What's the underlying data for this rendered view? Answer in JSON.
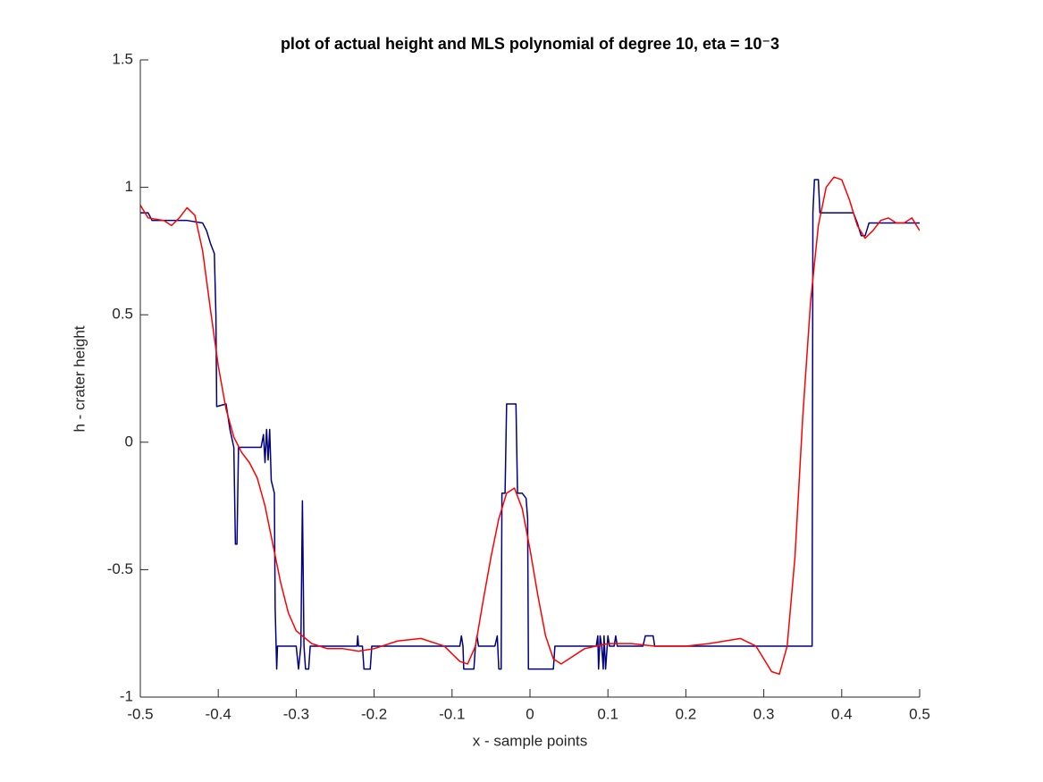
{
  "chart_data": {
    "type": "line",
    "title": "plot of actual height and MLS polynomial of degree 10, eta = 10⁻3",
    "x_label": "x - sample points",
    "y_label": "h - crater height",
    "xlim": [
      -0.5,
      0.5
    ],
    "ylim": [
      -1,
      1.5
    ],
    "xticks": [
      -0.5,
      -0.4,
      -0.3,
      -0.2,
      -0.1,
      0,
      0.1,
      0.2,
      0.3,
      0.4,
      0.5
    ],
    "yticks": [
      -1,
      -0.5,
      0,
      0.5,
      1,
      1.5
    ],
    "series": [
      {
        "color": "#000080",
        "x": [
          -0.5,
          -0.49,
          -0.485,
          -0.44,
          -0.42,
          -0.415,
          -0.41,
          -0.405,
          -0.403,
          -0.402,
          -0.39,
          -0.385,
          -0.38,
          -0.378,
          -0.376,
          -0.374,
          -0.35,
          -0.345,
          -0.342,
          -0.34,
          -0.338,
          -0.336,
          -0.334,
          -0.332,
          -0.328,
          -0.327,
          -0.325,
          -0.324,
          -0.3,
          -0.297,
          -0.294,
          -0.292,
          -0.29,
          -0.288,
          -0.284,
          -0.282,
          -0.222,
          -0.221,
          -0.22,
          -0.215,
          -0.213,
          -0.205,
          -0.203,
          -0.09,
          -0.088,
          -0.086,
          -0.085,
          -0.072,
          -0.07,
          -0.068,
          -0.066,
          -0.045,
          -0.042,
          -0.04,
          -0.037,
          -0.036,
          -0.032,
          -0.03,
          -0.018,
          -0.016,
          -0.01,
          -0.005,
          -0.003,
          -0.002,
          0.03,
          0.032,
          0.085,
          0.087,
          0.088,
          0.09,
          0.092,
          0.094,
          0.095,
          0.097,
          0.1,
          0.102,
          0.108,
          0.11,
          0.112,
          0.145,
          0.148,
          0.158,
          0.16,
          0.362,
          0.363,
          0.365,
          0.37,
          0.372,
          0.415,
          0.42,
          0.425,
          0.43,
          0.435,
          0.5
        ],
        "values": [
          0.9,
          0.9,
          0.87,
          0.87,
          0.86,
          0.83,
          0.78,
          0.74,
          0.5,
          0.14,
          0.15,
          0.05,
          -0.02,
          -0.4,
          -0.4,
          -0.02,
          -0.02,
          -0.02,
          0.03,
          -0.08,
          0.05,
          -0.07,
          0.05,
          -0.15,
          -0.2,
          -0.65,
          -0.89,
          -0.8,
          -0.8,
          -0.89,
          -0.8,
          -0.23,
          -0.8,
          -0.89,
          -0.89,
          -0.8,
          -0.8,
          -0.76,
          -0.8,
          -0.8,
          -0.89,
          -0.89,
          -0.8,
          -0.8,
          -0.76,
          -0.8,
          -0.89,
          -0.89,
          -0.8,
          -0.76,
          -0.8,
          -0.8,
          -0.76,
          -0.89,
          -0.89,
          -0.2,
          -0.2,
          0.15,
          0.15,
          -0.2,
          -0.2,
          -0.22,
          -0.3,
          -0.89,
          -0.89,
          -0.8,
          -0.8,
          -0.76,
          -0.89,
          -0.76,
          -0.8,
          -0.89,
          -0.76,
          -0.89,
          -0.76,
          -0.8,
          -0.8,
          -0.76,
          -0.8,
          -0.8,
          -0.76,
          -0.76,
          -0.8,
          -0.8,
          0.9,
          1.03,
          1.03,
          0.9,
          0.9,
          0.86,
          0.81,
          0.81,
          0.86,
          0.86
        ]
      },
      {
        "color": "#ff0000",
        "x": [
          -0.5,
          -0.49,
          -0.47,
          -0.46,
          -0.45,
          -0.44,
          -0.43,
          -0.42,
          -0.41,
          -0.4,
          -0.39,
          -0.38,
          -0.37,
          -0.36,
          -0.35,
          -0.34,
          -0.33,
          -0.32,
          -0.31,
          -0.3,
          -0.28,
          -0.26,
          -0.24,
          -0.22,
          -0.2,
          -0.17,
          -0.14,
          -0.11,
          -0.09,
          -0.08,
          -0.07,
          -0.06,
          -0.05,
          -0.04,
          -0.03,
          -0.02,
          -0.01,
          0,
          0.01,
          0.02,
          0.03,
          0.04,
          0.05,
          0.07,
          0.1,
          0.13,
          0.16,
          0.2,
          0.23,
          0.27,
          0.29,
          0.31,
          0.32,
          0.33,
          0.34,
          0.35,
          0.36,
          0.37,
          0.38,
          0.39,
          0.4,
          0.41,
          0.42,
          0.43,
          0.44,
          0.45,
          0.46,
          0.47,
          0.48,
          0.49,
          0.5
        ],
        "values": [
          0.93,
          0.88,
          0.87,
          0.85,
          0.88,
          0.92,
          0.89,
          0.75,
          0.52,
          0.3,
          0.13,
          0.02,
          -0.04,
          -0.08,
          -0.14,
          -0.25,
          -0.4,
          -0.55,
          -0.67,
          -0.74,
          -0.79,
          -0.81,
          -0.81,
          -0.82,
          -0.81,
          -0.78,
          -0.77,
          -0.8,
          -0.86,
          -0.87,
          -0.8,
          -0.62,
          -0.45,
          -0.3,
          -0.2,
          -0.18,
          -0.26,
          -0.42,
          -0.6,
          -0.76,
          -0.85,
          -0.87,
          -0.85,
          -0.81,
          -0.79,
          -0.79,
          -0.8,
          -0.8,
          -0.79,
          -0.77,
          -0.8,
          -0.9,
          -0.91,
          -0.8,
          -0.45,
          0.1,
          0.55,
          0.85,
          1.0,
          1.04,
          1.03,
          0.95,
          0.85,
          0.8,
          0.83,
          0.87,
          0.88,
          0.86,
          0.86,
          0.88,
          0.83
        ]
      }
    ]
  }
}
